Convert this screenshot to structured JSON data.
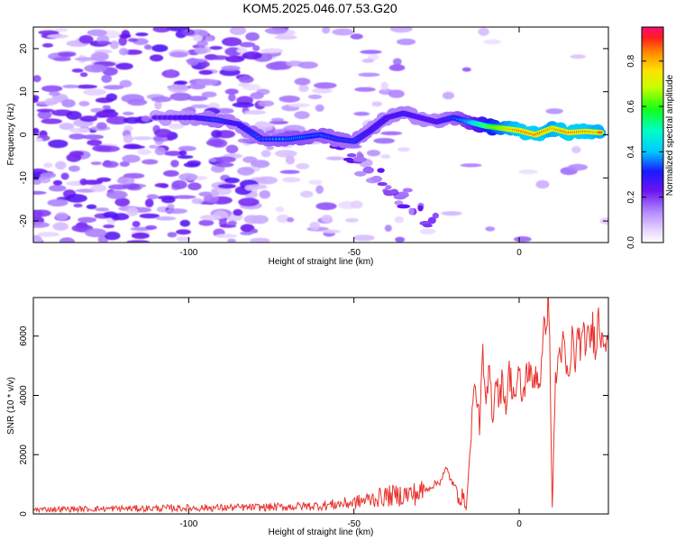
{
  "title": "KOM5.2025.046.07.53.G20",
  "colors": {
    "snr_line": "#e8322c",
    "axis": "#000000",
    "background": "#ffffff"
  },
  "chart_data": [
    {
      "type": "heatmap",
      "xlabel": "Height of straight line (km)",
      "ylabel": "Frequency (Hz)",
      "xlim": [
        -147,
        27
      ],
      "ylim": [
        -25,
        25
      ],
      "x_ticks": [
        -100,
        -50,
        0
      ],
      "y_ticks": [
        -20,
        -10,
        0,
        10,
        20
      ],
      "colorbar": {
        "label": "Normalized spectral amplitude",
        "range": [
          0,
          0.95
        ],
        "ticks": [
          0,
          0.2,
          0.4,
          0.6,
          0.8
        ]
      },
      "ridge": [
        {
          "x": -110,
          "y": 4,
          "a": 0.25
        },
        {
          "x": -98,
          "y": 4,
          "a": 0.3
        },
        {
          "x": -92,
          "y": 3.5,
          "a": 0.35
        },
        {
          "x": -85,
          "y": 2.5,
          "a": 0.3
        },
        {
          "x": -78,
          "y": -1,
          "a": 0.35
        },
        {
          "x": -70,
          "y": -1,
          "a": 0.4
        },
        {
          "x": -65,
          "y": -0.5,
          "a": 0.4
        },
        {
          "x": -60,
          "y": 0,
          "a": 0.38
        },
        {
          "x": -55,
          "y": -1,
          "a": 0.35
        },
        {
          "x": -50,
          "y": -1.5,
          "a": 0.35
        },
        {
          "x": -45,
          "y": 1,
          "a": 0.3
        },
        {
          "x": -40,
          "y": 4,
          "a": 0.3
        },
        {
          "x": -35,
          "y": 5,
          "a": 0.32
        },
        {
          "x": -30,
          "y": 4,
          "a": 0.3
        },
        {
          "x": -25,
          "y": 3,
          "a": 0.3
        },
        {
          "x": -20,
          "y": 4,
          "a": 0.35
        },
        {
          "x": -15,
          "y": 3,
          "a": 0.45
        },
        {
          "x": -10,
          "y": 2,
          "a": 0.65
        },
        {
          "x": -5,
          "y": 1.5,
          "a": 0.8
        },
        {
          "x": 0,
          "y": 1,
          "a": 0.9
        },
        {
          "x": 5,
          "y": 0,
          "a": 0.92
        },
        {
          "x": 10,
          "y": 1.5,
          "a": 0.85
        },
        {
          "x": 15,
          "y": 0.5,
          "a": 0.92
        },
        {
          "x": 20,
          "y": 0.8,
          "a": 0.9
        },
        {
          "x": 25,
          "y": 0.5,
          "a": 0.85
        }
      ]
    },
    {
      "type": "line",
      "xlabel": "Height of straight line (km)",
      "ylabel": "SNR (10 * v/v)",
      "xlim": [
        -147,
        27
      ],
      "ylim": [
        0,
        7300
      ],
      "x_ticks": [
        -100,
        -50,
        0
      ],
      "y_ticks": [
        0,
        2000,
        4000,
        6000
      ],
      "series": [
        {
          "x": [
            -147,
            -140,
            -130,
            -120,
            -110,
            -100,
            -90,
            -80,
            -70,
            -60,
            -55,
            -50,
            -45,
            -40,
            -35,
            -30,
            -27,
            -24,
            -22,
            -20,
            -18,
            -16,
            -15,
            -14,
            -13,
            -12,
            -11,
            -10,
            -9,
            -8,
            -7,
            -6,
            -5,
            -4,
            -3,
            -2,
            -1,
            0,
            1,
            2,
            3,
            4,
            5,
            6,
            7,
            8,
            9,
            10,
            11,
            12,
            13,
            14,
            15,
            16,
            17,
            18,
            19,
            20,
            21,
            22,
            23,
            24,
            25,
            26,
            27
          ],
          "values": [
            150,
            160,
            170,
            180,
            190,
            200,
            210,
            220,
            240,
            280,
            330,
            380,
            500,
            600,
            650,
            700,
            900,
            1100,
            1500,
            1000,
            700,
            300,
            1800,
            3900,
            4200,
            3000,
            5200,
            3500,
            5000,
            3200,
            4800,
            3800,
            4600,
            3600,
            4800,
            4200,
            4000,
            4700,
            3800,
            4600,
            5000,
            4200,
            4900,
            4400,
            5200,
            6800,
            7200,
            200,
            4500,
            5300,
            5800,
            5100,
            4300,
            5900,
            5200,
            6100,
            5600,
            6000,
            5700,
            6300,
            5900,
            6500,
            6100,
            6200,
            6100
          ]
        }
      ]
    }
  ]
}
